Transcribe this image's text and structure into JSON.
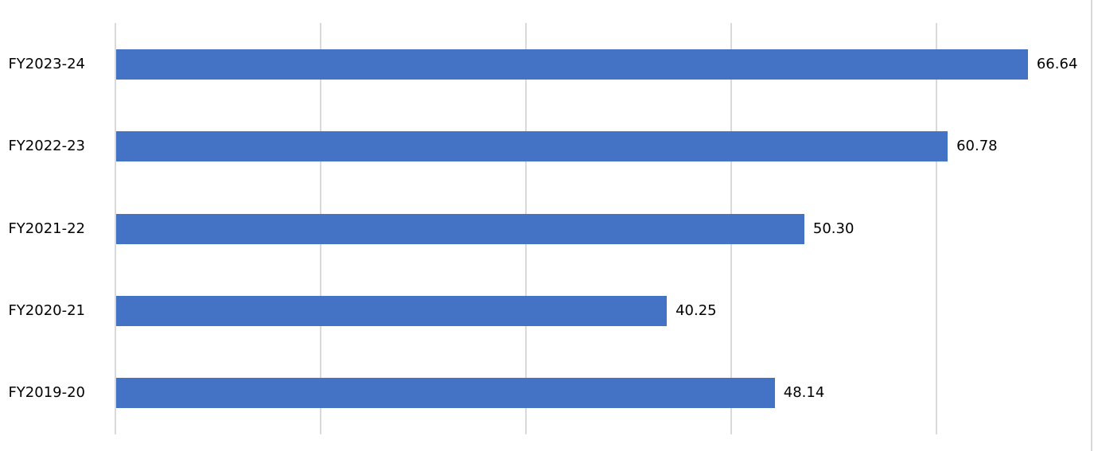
{
  "chart_data": {
    "type": "bar",
    "orientation": "horizontal",
    "title": "",
    "xlabel": "",
    "ylabel": "",
    "categories": [
      "FY2023-24",
      "FY2022-23",
      "FY2021-22",
      "FY2020-21",
      "FY2019-20"
    ],
    "values": [
      66.64,
      60.78,
      50.3,
      40.25,
      48.14
    ],
    "value_labels": [
      "66.64",
      "60.78",
      "50.30",
      "40.25",
      "48.14"
    ],
    "xlim": [
      0,
      71.3
    ],
    "gridlines_at": [
      0,
      15,
      30,
      45,
      60
    ],
    "grid": true,
    "legend": false,
    "data_labels_position": "outside-end",
    "colors": {
      "bar": "#4472C4",
      "gridline": "#D9D9D9",
      "border": "#D9D9D9",
      "label_text": "#000000",
      "background": "#FFFFFF"
    }
  }
}
